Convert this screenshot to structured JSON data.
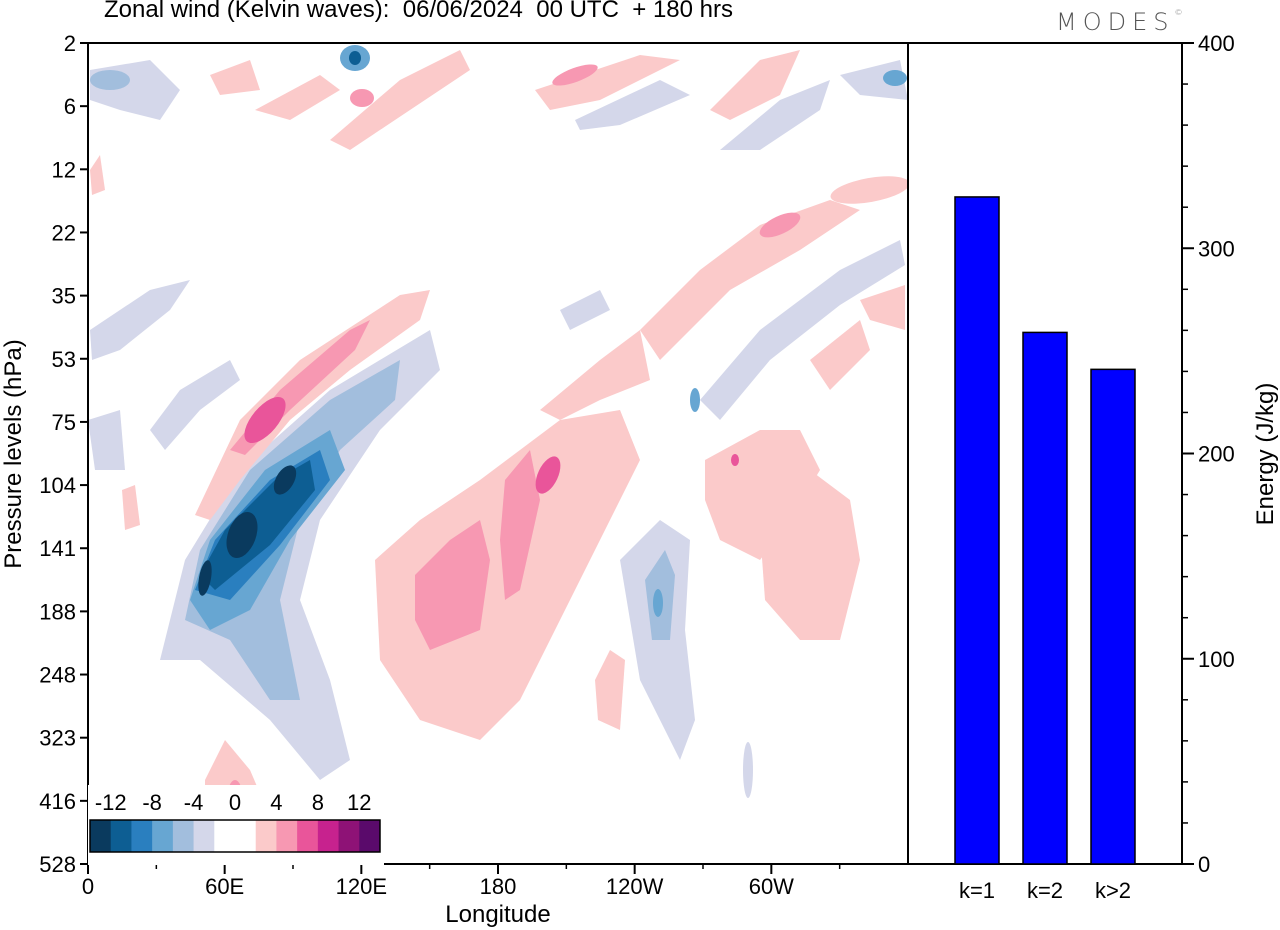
{
  "title": "Zonal wind (Kelvin waves):  06/06/2024  00 UTC  + 180 hrs",
  "brand": "MODES",
  "brand_mark": "©",
  "colors": {
    "blue_bar": "#0000ff",
    "scale": [
      "#0a3a5e",
      "#0d5e93",
      "#2a7fbf",
      "#67a6d2",
      "#a2bedd",
      "#d4d7ea",
      "#ffffff",
      "#ffffff",
      "#fbcaca",
      "#f798b2",
      "#e9559a",
      "#c7228e",
      "#8e1276",
      "#5a0a6b"
    ]
  },
  "chart_data": [
    {
      "type": "heatmap",
      "title": "Zonal wind (Kelvin waves):  06/06/2024  00 UTC  + 180 hrs",
      "xlabel": "Longitude",
      "ylabel": "Pressure levels (hPa)",
      "x_ticks": [
        "0",
        "60E",
        "120E",
        "180",
        "120W",
        "60W"
      ],
      "y_ticks": [
        "2",
        "6",
        "12",
        "22",
        "35",
        "53",
        "75",
        "104",
        "141",
        "188",
        "248",
        "323",
        "416",
        "528"
      ],
      "colorbar_ticks": [
        "-12",
        "-8",
        "-4",
        "0",
        "4",
        "8",
        "12"
      ],
      "features": [
        {
          "kind": "easterly",
          "lon": 80,
          "p": 141,
          "level": -12
        },
        {
          "kind": "easterly",
          "lon": 95,
          "p": 104,
          "level": -10
        },
        {
          "kind": "westerly",
          "lon": 75,
          "p": 75,
          "level": 8
        },
        {
          "kind": "westerly",
          "lon": 150,
          "p": 160,
          "level": 5
        },
        {
          "kind": "easterly",
          "lon": 255,
          "p": 188,
          "level": -6
        }
      ]
    },
    {
      "type": "bar",
      "categories": [
        "k=1",
        "k=2",
        "k>2"
      ],
      "values": [
        325,
        259,
        241
      ],
      "ylabel": "Energy (J/kg)",
      "ylim": [
        0,
        400
      ],
      "y_ticks": [
        "0",
        "100",
        "200",
        "300",
        "400"
      ]
    }
  ]
}
